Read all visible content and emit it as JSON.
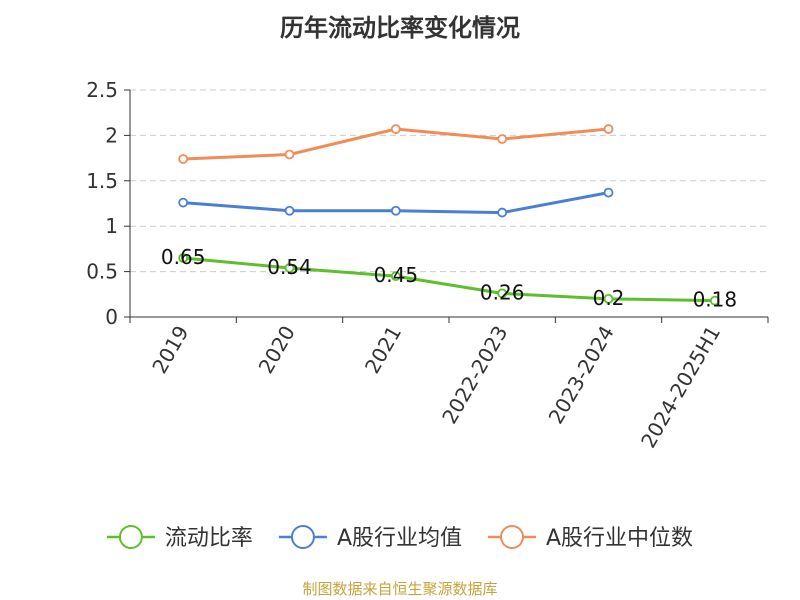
{
  "title": "历年流动比率变化情况",
  "source": "制图数据来自恒生聚源数据库",
  "chart_data": {
    "type": "line",
    "title": "历年流动比率变化情况",
    "categories": [
      "2019",
      "2020",
      "2021",
      "2022-2023",
      "2023-2024",
      "2024-2025H1"
    ],
    "ylim": [
      0,
      2.5
    ],
    "yticks": [
      "0",
      "0.5",
      "1",
      "1.5",
      "2",
      "2.5"
    ],
    "grid": true,
    "legend_position": "bottom",
    "series": [
      {
        "name": "流动比率",
        "color": "#5cc02a",
        "values": [
          0.65,
          0.54,
          0.45,
          0.26,
          0.2,
          0.18
        ],
        "labels": [
          "0.65",
          "0.54",
          "0.45",
          "0.26",
          "0.2",
          "0.18"
        ]
      },
      {
        "name": "A股行业均值",
        "color": "#4a7fd6",
        "values": [
          1.26,
          1.17,
          1.17,
          1.15,
          1.37,
          null
        ]
      },
      {
        "name": "A股行业中位数",
        "color": "#f28c57",
        "values": [
          1.74,
          1.79,
          2.07,
          1.96,
          2.07,
          null
        ]
      }
    ]
  }
}
